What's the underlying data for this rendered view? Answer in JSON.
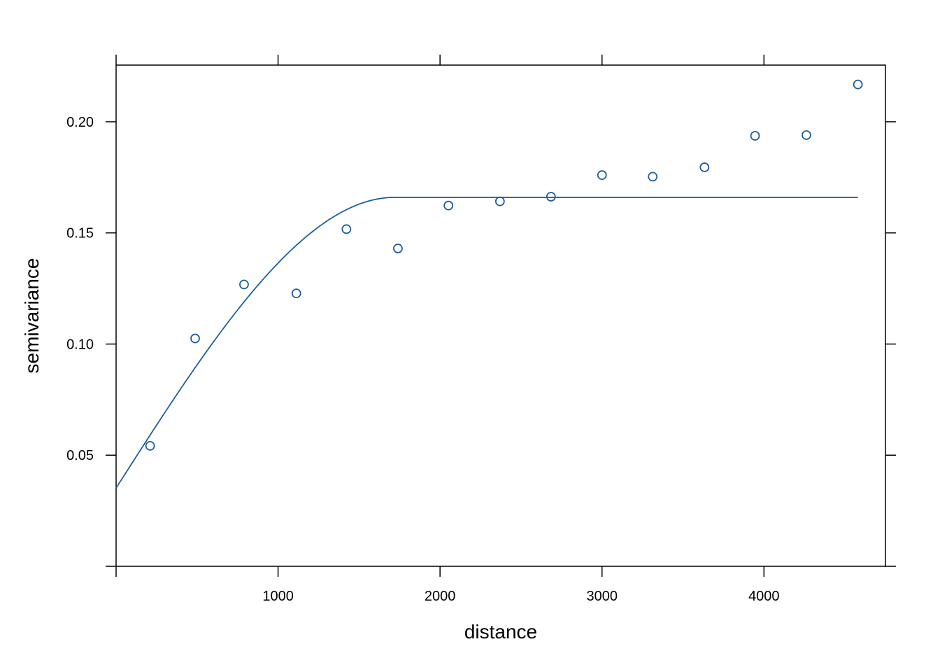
{
  "chart_data": {
    "type": "scatter",
    "title": "",
    "xlabel": "distance",
    "ylabel": "semivariance",
    "xlim": [
      0,
      4750
    ],
    "ylim": [
      0,
      0.2255
    ],
    "grid": false,
    "colors": {
      "series": "#1f5f9e",
      "axis": "#000000"
    },
    "x_ticks": [
      {
        "value": 1000,
        "label": "1000"
      },
      {
        "value": 2000,
        "label": "2000"
      },
      {
        "value": 3000,
        "label": "3000"
      },
      {
        "value": 4000,
        "label": "4000"
      }
    ],
    "y_ticks": [
      {
        "value": 0.05,
        "label": "0.05"
      },
      {
        "value": 0.1,
        "label": "0.10"
      },
      {
        "value": 0.15,
        "label": "0.15"
      },
      {
        "value": 0.2,
        "label": "0.20"
      }
    ],
    "points": [
      {
        "x": 210,
        "y": 0.0542
      },
      {
        "x": 488,
        "y": 0.1025
      },
      {
        "x": 790,
        "y": 0.1268
      },
      {
        "x": 1113,
        "y": 0.1228
      },
      {
        "x": 1422,
        "y": 0.1517
      },
      {
        "x": 1740,
        "y": 0.143
      },
      {
        "x": 2052,
        "y": 0.1623
      },
      {
        "x": 2370,
        "y": 0.1642
      },
      {
        "x": 2685,
        "y": 0.1663
      },
      {
        "x": 3000,
        "y": 0.176
      },
      {
        "x": 3313,
        "y": 0.1753
      },
      {
        "x": 3633,
        "y": 0.1795
      },
      {
        "x": 3945,
        "y": 0.1937
      },
      {
        "x": 4262,
        "y": 0.194
      },
      {
        "x": 4580,
        "y": 0.2168
      }
    ],
    "model": {
      "type": "spherical",
      "nugget": 0.0352,
      "partial_sill": 0.1308,
      "range": 1720,
      "x_max": 4580
    }
  }
}
